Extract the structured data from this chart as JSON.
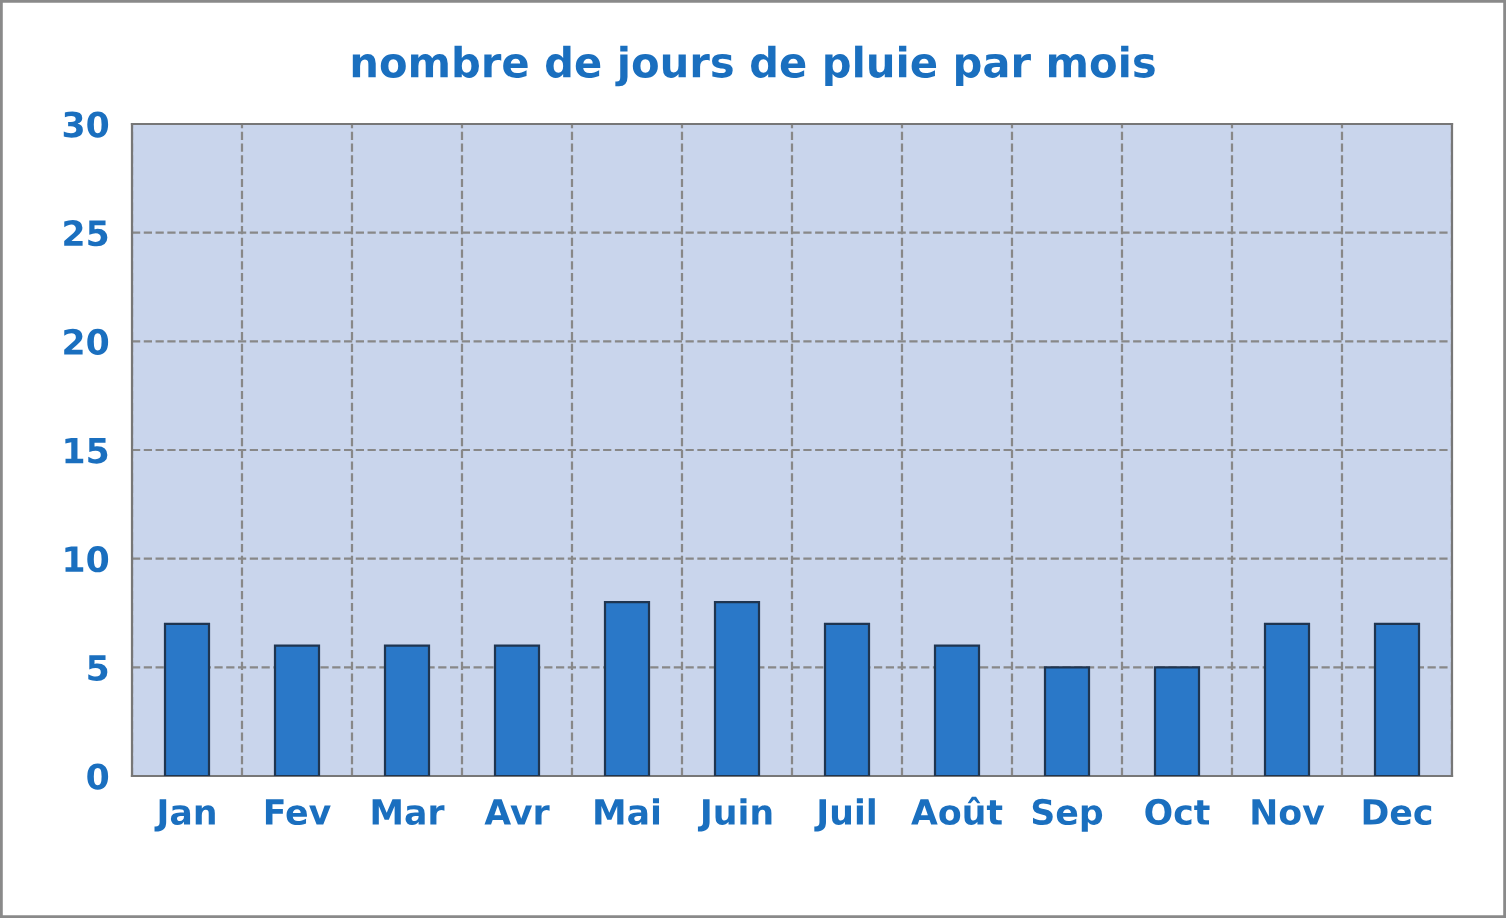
{
  "chart_data": {
    "type": "bar",
    "title": "nombre de jours de pluie par mois",
    "categories": [
      "Jan",
      "Fev",
      "Mar",
      "Avr",
      "Mai",
      "Juin",
      "Juil",
      "Août",
      "Sep",
      "Oct",
      "Nov",
      "Dec"
    ],
    "values": [
      7,
      6,
      6,
      6,
      8,
      8,
      7,
      6,
      5,
      5,
      7,
      7
    ],
    "color": "#2a78c8",
    "ylim": [
      0,
      30
    ],
    "yticks": [
      0,
      5,
      10,
      15,
      20,
      25,
      30
    ],
    "grid": true
  }
}
